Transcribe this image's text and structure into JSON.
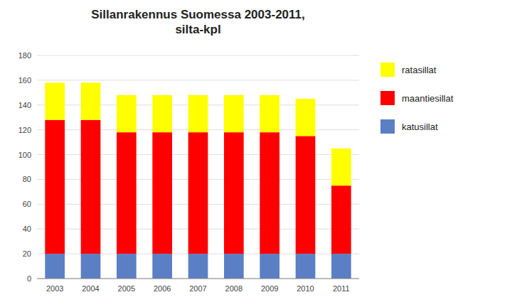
{
  "chart_data": {
    "type": "bar",
    "stacked": true,
    "title": "Sillanrakennus Suomessa 2003-2011,\nsilta-kpl",
    "categories": [
      "2003",
      "2004",
      "2005",
      "2006",
      "2007",
      "2008",
      "2009",
      "2010",
      "2011"
    ],
    "series": [
      {
        "name": "katusillat",
        "color": "#5B7FC4",
        "values": [
          20,
          20,
          20,
          20,
          20,
          20,
          20,
          20,
          20
        ]
      },
      {
        "name": "maantiesillat",
        "color": "#FF0000",
        "values": [
          108,
          108,
          98,
          98,
          98,
          98,
          98,
          95,
          55
        ]
      },
      {
        "name": "ratasillat",
        "color": "#FFFF00",
        "values": [
          30,
          30,
          30,
          30,
          30,
          30,
          30,
          30,
          30
        ]
      }
    ],
    "ylim": [
      0,
      180
    ],
    "yticks": [
      0,
      20,
      40,
      60,
      80,
      100,
      120,
      140,
      160,
      180
    ],
    "grid": true,
    "legend": "right"
  }
}
